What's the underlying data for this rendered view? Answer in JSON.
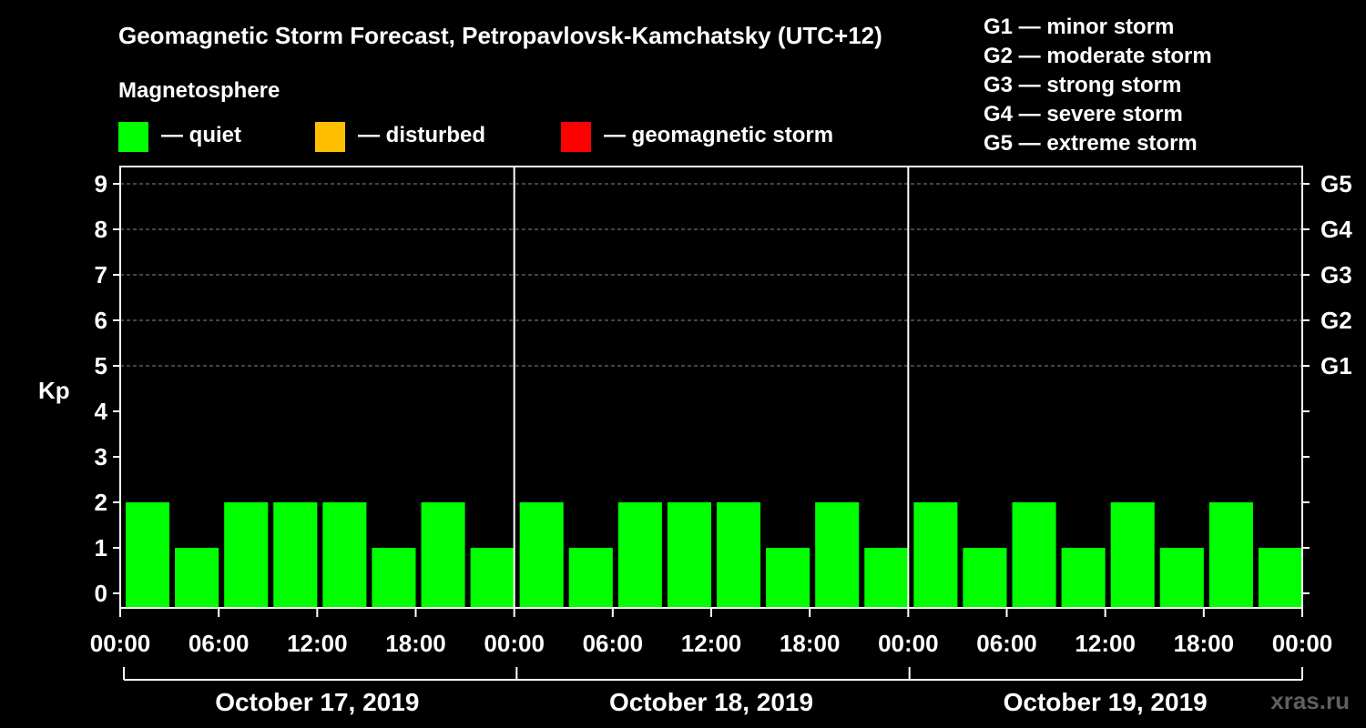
{
  "header": {
    "title": "Geomagnetic Storm Forecast, Petropavlovsk-Kamchatsky (UTC+12)",
    "legend_title": "Magnetosphere",
    "legend": [
      {
        "label": "— quiet",
        "color": "#00ff00"
      },
      {
        "label": "— disturbed",
        "color": "#ffbf00"
      },
      {
        "label": "— geomagnetic storm",
        "color": "#ff0000"
      }
    ]
  },
  "storm_levels": [
    "G1 — minor storm",
    "G2 — moderate storm",
    "G3 — strong storm",
    "G4 — severe storm",
    "G5 — extreme storm"
  ],
  "watermark": "xras.ru",
  "chart_data": {
    "type": "bar",
    "ylabel": "Kp",
    "ylim": [
      0,
      9
    ],
    "yticks": [
      "0",
      "1",
      "2",
      "3",
      "4",
      "5",
      "6",
      "7",
      "8",
      "9"
    ],
    "right_ticks": [
      {
        "kp": 5,
        "label": "G1"
      },
      {
        "kp": 6,
        "label": "G2"
      },
      {
        "kp": 7,
        "label": "G3"
      },
      {
        "kp": 8,
        "label": "G4"
      },
      {
        "kp": 9,
        "label": "G5"
      }
    ],
    "grid": true,
    "days": [
      "October 17, 2019",
      "October 18, 2019",
      "October 19, 2019"
    ],
    "time_ticks": [
      "00:00",
      "06:00",
      "12:00",
      "18:00",
      "00:00",
      "06:00",
      "12:00",
      "18:00",
      "00:00",
      "06:00",
      "12:00",
      "18:00",
      "00:00"
    ],
    "series": [
      {
        "values": [
          2,
          1,
          2,
          2,
          2,
          1,
          2,
          1,
          2,
          1,
          2,
          2,
          2,
          1,
          2,
          1,
          2,
          1,
          2,
          1,
          2,
          1,
          2,
          1
        ],
        "color": "#00ff00"
      }
    ]
  }
}
